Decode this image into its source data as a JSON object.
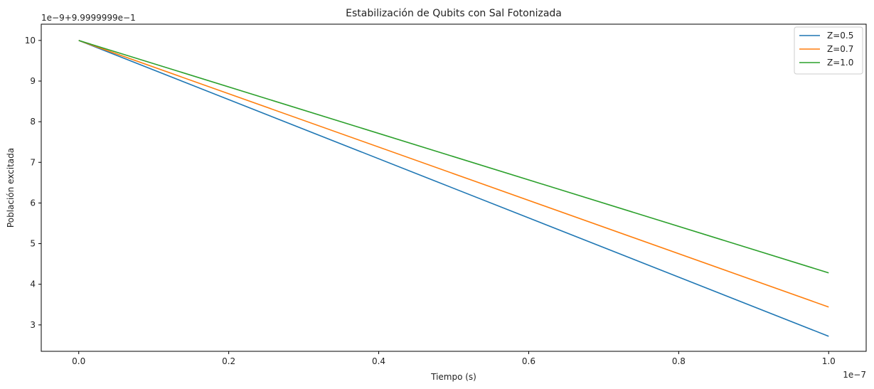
{
  "chart_data": {
    "type": "line",
    "title": "Estabilización de Qubits con Sal Fotonizada",
    "xlabel": "Tiempo (s)",
    "ylabel": "Población excitada",
    "x_offset_label": "1e−7",
    "y_offset_label": "1e−9+9.9999999e−1",
    "xlim": [
      -0.05,
      1.05
    ],
    "ylim": [
      2.35,
      10.4
    ],
    "x_ticks": [
      0.0,
      0.2,
      0.4,
      0.6,
      0.8,
      1.0
    ],
    "x_tick_labels": [
      "0.0",
      "0.2",
      "0.4",
      "0.6",
      "0.8",
      "1.0"
    ],
    "y_ticks": [
      3,
      4,
      5,
      6,
      7,
      8,
      9,
      10
    ],
    "y_tick_labels": [
      "3",
      "4",
      "5",
      "6",
      "7",
      "8",
      "9",
      "10"
    ],
    "grid": false,
    "legend_position": "top-right",
    "series": [
      {
        "name": "Z=0.5",
        "color": "#1f77b4",
        "x": [
          0.0,
          1.0
        ],
        "y": [
          10.0,
          2.72
        ]
      },
      {
        "name": "Z=0.7",
        "color": "#ff7f0e",
        "x": [
          0.0,
          1.0
        ],
        "y": [
          10.0,
          3.44
        ]
      },
      {
        "name": "Z=1.0",
        "color": "#2ca02c",
        "x": [
          0.0,
          1.0
        ],
        "y": [
          10.0,
          4.28
        ]
      }
    ]
  }
}
